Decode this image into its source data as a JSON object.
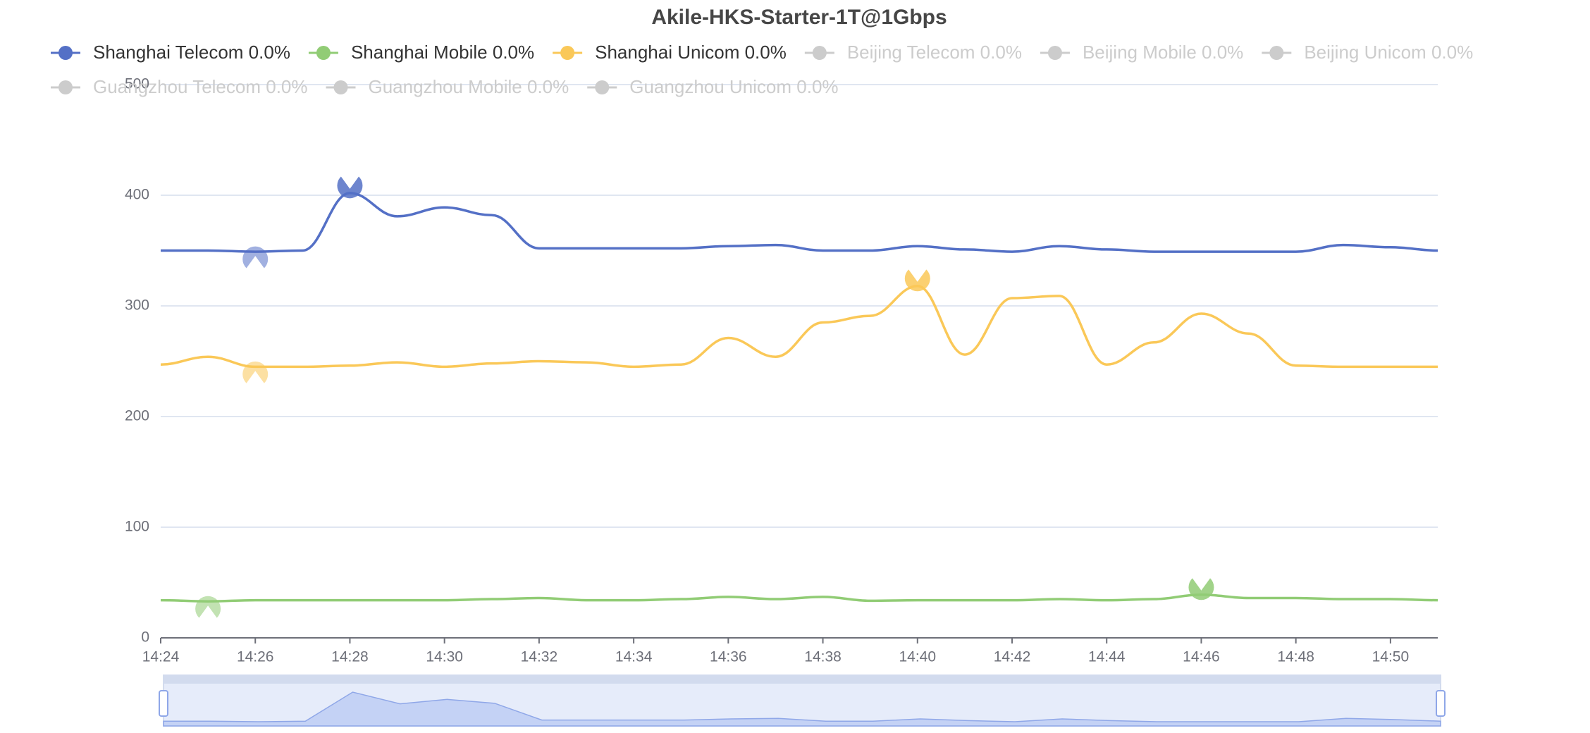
{
  "chart_data": {
    "type": "line",
    "title": "Akile-HKS-Starter-1T@1Gbps",
    "categories": [
      "14:24",
      null,
      "14:26",
      null,
      "14:28",
      null,
      "14:30",
      null,
      "14:32",
      null,
      "14:34",
      null,
      "14:36",
      null,
      "14:38",
      null,
      "14:40",
      null,
      "14:42",
      null,
      "14:44",
      null,
      "14:46",
      null,
      "14:48",
      null,
      "14:50",
      null
    ],
    "series": [
      {
        "name": "Shanghai Telecom 0.0%",
        "color": "#5470c6",
        "values": [
          350,
          350,
          349,
          350,
          402,
          381,
          389,
          382,
          352,
          352,
          352,
          352,
          354,
          355,
          350,
          350,
          354,
          351,
          349,
          354,
          351,
          349,
          349,
          349,
          349,
          355,
          353,
          350
        ]
      },
      {
        "name": "Shanghai Mobile 0.0%",
        "color": "#91cc75",
        "values": [
          34,
          33,
          34,
          34,
          34,
          34,
          34,
          35,
          36,
          34,
          34,
          35,
          37,
          35,
          37,
          33.5,
          34,
          34,
          34,
          35,
          34,
          35,
          39,
          36,
          36,
          35,
          35,
          34
        ]
      },
      {
        "name": "Shanghai Unicom 0.0%",
        "color": "#fac858",
        "values": [
          247,
          254,
          245,
          245,
          246,
          249,
          245,
          248,
          250,
          249,
          245,
          247,
          271,
          254,
          285,
          291,
          318,
          256,
          307,
          309,
          247,
          267,
          293,
          275,
          246,
          245,
          245,
          245
        ]
      },
      {
        "name": "Beijing Telecom 0.0%",
        "color": "#cccccc",
        "hidden": true
      },
      {
        "name": "Beijing Mobile 0.0%",
        "color": "#cccccc",
        "hidden": true
      },
      {
        "name": "Beijing Unicom 0.0%",
        "color": "#cccccc",
        "hidden": true
      },
      {
        "name": "Guangzhou Telecom 0.0%",
        "color": "#cccccc",
        "hidden": true
      },
      {
        "name": "Guangzhou Mobile 0.0%",
        "color": "#cccccc",
        "hidden": true
      },
      {
        "name": "Guangzhou Unicom 0.0%",
        "color": "#cccccc",
        "hidden": true
      }
    ],
    "ylim": [
      0,
      500
    ],
    "yticks": [
      0,
      100,
      200,
      300,
      400,
      500
    ],
    "grid": true
  }
}
